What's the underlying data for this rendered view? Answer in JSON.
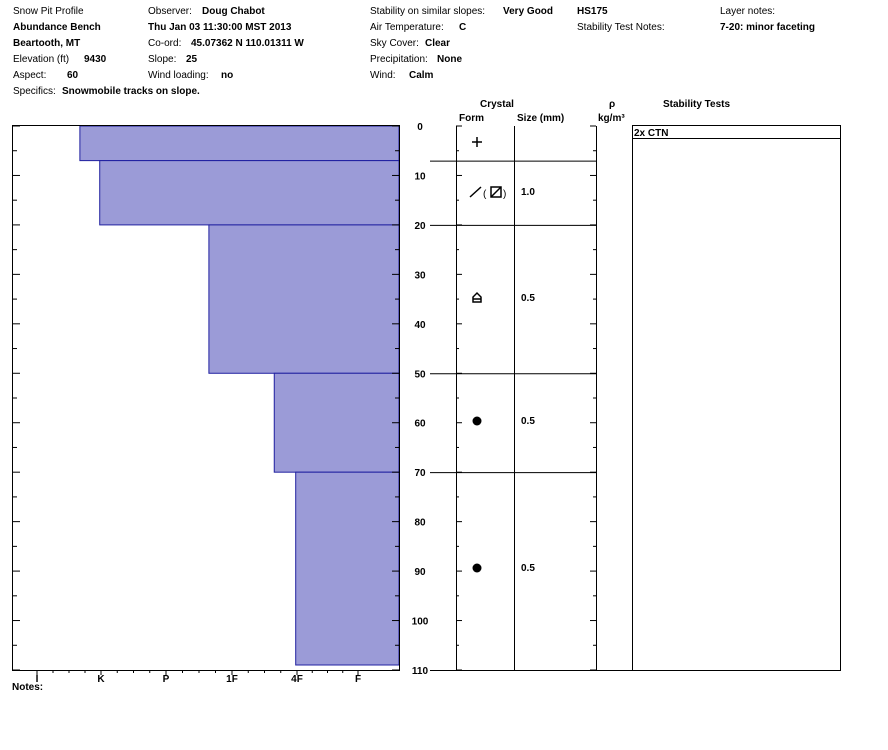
{
  "header": {
    "title": "Snow Pit Profile",
    "location": "Abundance Bench",
    "region": "Beartooth, MT",
    "elevation_label": "Elevation (ft)",
    "elevation_value": "9430",
    "aspect_label": "Aspect:",
    "aspect_value": "60",
    "specifics_label": "Specifics:",
    "specifics_value": "Snowmobile tracks on slope.",
    "observer_label": "Observer:",
    "observer_value": "Doug Chabot",
    "datetime": "Thu Jan 03 11:30:00 MST 2013",
    "coord_label": "Co-ord:",
    "coord_value": "45.07362 N 110.01311 W",
    "slope_label": "Slope:",
    "slope_value": "25",
    "wind_loading_label": "Wind loading:",
    "wind_loading_value": "no",
    "stability_label": "Stability on similar slopes:",
    "stability_value": "Very Good",
    "air_temp_label": "Air Temperature:",
    "air_temp_value": "C",
    "sky_label": "Sky Cover:",
    "sky_value": "Clear",
    "precip_label": "Precipitation:",
    "precip_value": "None",
    "wind_label": "Wind:",
    "wind_value": "Calm",
    "hs": "HS175",
    "stability_notes_label": "Stability Test Notes:",
    "layer_notes_label": "Layer notes:",
    "layer_notes_value": "7-20: minor faceting"
  },
  "columns": {
    "crystal": "Crystal",
    "form": "Form",
    "size": "Size (mm)",
    "density_symbol": "ρ",
    "density_unit": "kg/m³",
    "stability_tests": "Stability Tests"
  },
  "hardness_axis": [
    "I",
    "K",
    "P",
    "1F",
    "4F",
    "F"
  ],
  "depth_ticks": [
    "0",
    "10",
    "20",
    "30",
    "40",
    "50",
    "60",
    "70",
    "80",
    "90",
    "100",
    "110"
  ],
  "depth_max": 110,
  "layers": [
    {
      "top": 0,
      "bottom": 7,
      "hardness": 0.67,
      "form": "precipitation-particle-icon",
      "size": ""
    },
    {
      "top": 7,
      "bottom": 20,
      "hardness": 0.98,
      "form": "faceted-rounded-icon",
      "size": "1.0"
    },
    {
      "top": 20,
      "bottom": 50,
      "hardness": 2.65,
      "form": "depth-hoar-icon",
      "size": "0.5"
    },
    {
      "top": 50,
      "bottom": 70,
      "hardness": 3.65,
      "form": "rounded-grain-icon",
      "size": "0.5"
    },
    {
      "top": 70,
      "bottom": 110,
      "hardness": 3.98,
      "form": "rounded-grain-icon",
      "size": "0.5"
    }
  ],
  "stability_test": {
    "label": "2x CTN"
  },
  "notes_label": "Notes:",
  "colors": {
    "layer_fill": "#9b9bd7",
    "layer_stroke": "#2020a0"
  }
}
